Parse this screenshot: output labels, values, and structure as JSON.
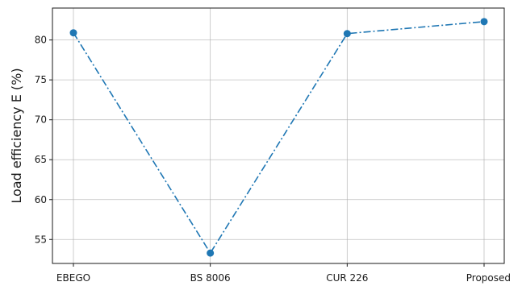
{
  "chart_data": {
    "type": "line",
    "title": "",
    "xlabel": "",
    "ylabel": "Load efficiency E (%)",
    "categories": [
      "EBEGO",
      "BS 8006",
      "CUR 226",
      "Proposed"
    ],
    "series": [
      {
        "values": [
          80.9,
          53.3,
          80.8,
          82.3
        ],
        "color": "#1f77b4",
        "line_style": "dash-dot",
        "marker": "circle"
      }
    ],
    "yticks": [
      55,
      60,
      65,
      70,
      75,
      80
    ],
    "ylim": [
      52,
      84
    ],
    "grid": true
  }
}
